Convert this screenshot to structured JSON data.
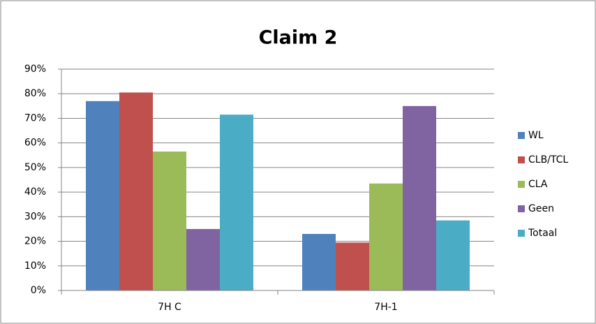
{
  "chart_data": {
    "type": "bar",
    "title": "Claim 2",
    "categories": [
      "7H C",
      "7H-1"
    ],
    "series": [
      {
        "name": "WL",
        "color": "#4f81bd",
        "values": [
          77,
          23
        ]
      },
      {
        "name": "CLB/TCL",
        "color": "#c0504d",
        "values": [
          80.5,
          19.5
        ]
      },
      {
        "name": "CLA",
        "color": "#9bbb59",
        "values": [
          56.5,
          43.5
        ]
      },
      {
        "name": "Geen",
        "color": "#8064a2",
        "values": [
          25,
          75
        ]
      },
      {
        "name": "Totaal",
        "color": "#4bacc6",
        "values": [
          71.5,
          28.5
        ]
      }
    ],
    "ylim": [
      0,
      90
    ],
    "yticks": [
      {
        "value": 0,
        "label": "0%"
      },
      {
        "value": 10,
        "label": "10%"
      },
      {
        "value": 20,
        "label": "20%"
      },
      {
        "value": 30,
        "label": "30%"
      },
      {
        "value": 40,
        "label": "40%"
      },
      {
        "value": 50,
        "label": "50%"
      },
      {
        "value": 60,
        "label": "60%"
      },
      {
        "value": 70,
        "label": "70%"
      },
      {
        "value": 80,
        "label": "80%"
      },
      {
        "value": 90,
        "label": "90%"
      }
    ],
    "grid": true,
    "legend": "right"
  }
}
